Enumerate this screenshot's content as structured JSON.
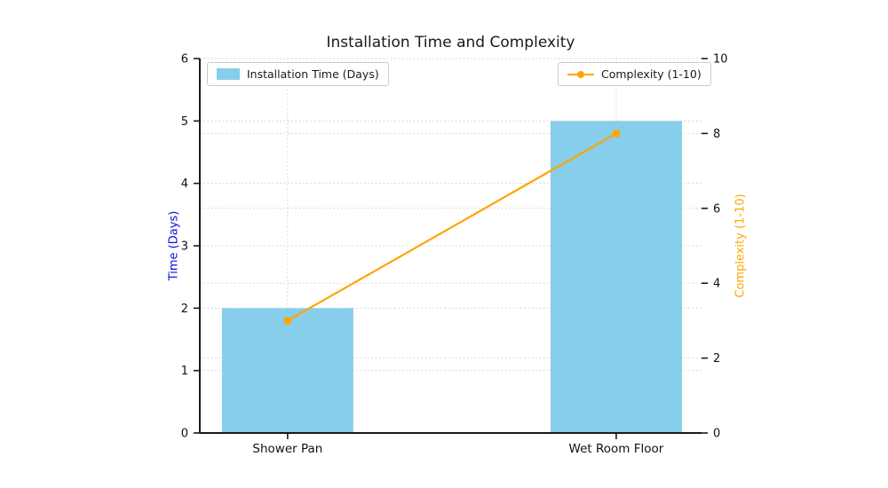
{
  "chart_data": {
    "type": "bar",
    "title": "Installation Time and Complexity",
    "categories": [
      "Shower Pan",
      "Wet Room Floor"
    ],
    "series": [
      {
        "name": "Installation Time (Days)",
        "type": "bar",
        "axis": "left",
        "values": [
          2,
          5
        ],
        "color": "#87CEEB"
      },
      {
        "name": "Complexity (1-10)",
        "type": "line",
        "axis": "right",
        "values": [
          3,
          8
        ],
        "color": "#FFA500"
      }
    ],
    "ylabel_left": "Time (Days)",
    "ylabel_right": "Complexity (1-10)",
    "ylim_left": [
      0,
      6
    ],
    "ylim_right": [
      0,
      10
    ],
    "yticks_left": [
      0,
      1,
      2,
      3,
      4,
      5,
      6
    ],
    "yticks_right": [
      0,
      2,
      4,
      6,
      8,
      10
    ],
    "grid": true,
    "legend_positions": [
      "upper left",
      "upper right"
    ],
    "colors": {
      "bar": "#87CEEB",
      "line": "#FFA500",
      "ylabel_left": "#0d0de0",
      "ylabel_right": "#FFA500",
      "grid": "#cccccc",
      "spine": "#1a1a1a",
      "tick_text": "#111111"
    }
  }
}
